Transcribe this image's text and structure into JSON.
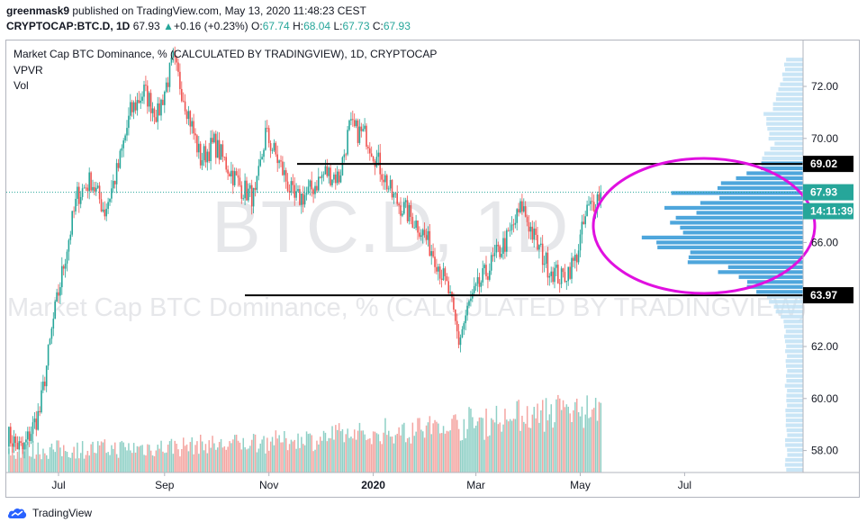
{
  "header": {
    "user": "greenmask9",
    "published_text": " published on TradingView.com, May 13, 2020 11:48:23 CEST",
    "symbol": "CRYPTOCAP:BTC.D, 1D",
    "last": "67.93",
    "change_arrow": "▲",
    "change": "+0.16 (+0.23%)",
    "o_label": "O:",
    "o_val": "67.74",
    "h_label": "H:",
    "h_val": "68.04",
    "l_label": "L:",
    "l_val": "67.73",
    "c_label": "C:",
    "c_val": "67.93"
  },
  "legend": {
    "title": "Market Cap BTC Dominance, % (CALCULATED BY TRADINGVIEW), 1D, CRYPTOCAP",
    "indicator1": "VPVR",
    "indicator2": "Vol"
  },
  "watermark": {
    "big": "BTC.D, 1D",
    "small": "Market Cap BTC Dominance, % (CALCULATED BY TRADINGVIEW)"
  },
  "footer": {
    "brand": "TradingView",
    "logo_icon": "tradingview-cloud-icon"
  },
  "chart_data": {
    "type": "candlestick",
    "x_tick_labels": [
      "Jul",
      "Sep",
      "Nov",
      "2020",
      "Mar",
      "May",
      "Jul"
    ],
    "y_tick_labels": [
      "72.00",
      "70.00",
      "68.00",
      "66.00",
      "64.00",
      "62.00",
      "60.00",
      "58.00"
    ],
    "ylim": [
      57.2,
      73.1
    ],
    "price_levels": [
      {
        "label": "69.02",
        "value": 69.02
      },
      {
        "label": "63.97",
        "value": 63.97
      }
    ],
    "last_price": {
      "label": "67.93",
      "value": 67.93,
      "countdown": "14:11:39"
    },
    "trend_path": [
      [
        "2019-06-01",
        58.6
      ],
      [
        "2019-06-10",
        58.0
      ],
      [
        "2019-06-20",
        59.5
      ],
      [
        "2019-06-28",
        63.0
      ],
      [
        "2019-07-05",
        65.5
      ],
      [
        "2019-07-12",
        67.8
      ],
      [
        "2019-07-20",
        68.4
      ],
      [
        "2019-07-28",
        67.2
      ],
      [
        "2019-08-05",
        68.9
      ],
      [
        "2019-08-12",
        71.0
      ],
      [
        "2019-08-20",
        71.8
      ],
      [
        "2019-08-28",
        70.9
      ],
      [
        "2019-09-06",
        73.0
      ],
      [
        "2019-09-14",
        71.2
      ],
      [
        "2019-09-22",
        69.2
      ],
      [
        "2019-09-30",
        69.8
      ],
      [
        "2019-10-08",
        68.9
      ],
      [
        "2019-10-16",
        68.1
      ],
      [
        "2019-10-24",
        67.7
      ],
      [
        "2019-10-30",
        70.2
      ],
      [
        "2019-11-08",
        68.9
      ],
      [
        "2019-11-16",
        67.6
      ],
      [
        "2019-11-24",
        67.9
      ],
      [
        "2019-12-04",
        68.7
      ],
      [
        "2019-12-12",
        68.5
      ],
      [
        "2019-12-18",
        70.4
      ],
      [
        "2019-12-28",
        70.1
      ],
      [
        "2020-01-05",
        68.9
      ],
      [
        "2020-01-12",
        67.8
      ],
      [
        "2020-01-20",
        67.2
      ],
      [
        "2020-01-28",
        66.6
      ],
      [
        "2020-02-06",
        65.5
      ],
      [
        "2020-02-14",
        64.1
      ],
      [
        "2020-02-20",
        62.2
      ],
      [
        "2020-02-26",
        63.6
      ],
      [
        "2020-03-05",
        64.6
      ],
      [
        "2020-03-12",
        65.4
      ],
      [
        "2020-03-20",
        66.2
      ],
      [
        "2020-03-28",
        67.4
      ],
      [
        "2020-04-05",
        66.0
      ],
      [
        "2020-04-12",
        65.1
      ],
      [
        "2020-04-20",
        64.6
      ],
      [
        "2020-04-28",
        65.3
      ],
      [
        "2020-05-05",
        67.2
      ],
      [
        "2020-05-13",
        67.93
      ]
    ],
    "annotation": {
      "type": "ellipse",
      "color": "#e010e0"
    }
  },
  "colors": {
    "up": "#26a69a",
    "down": "#ef5350",
    "vol_up": "#8fd0c6",
    "vol_down": "#f4a5a1",
    "vpvr": "#2f96d6",
    "vpvr_light": "#bfe0f4",
    "axis_text": "#131722",
    "last_price_line": "#26a69a"
  }
}
